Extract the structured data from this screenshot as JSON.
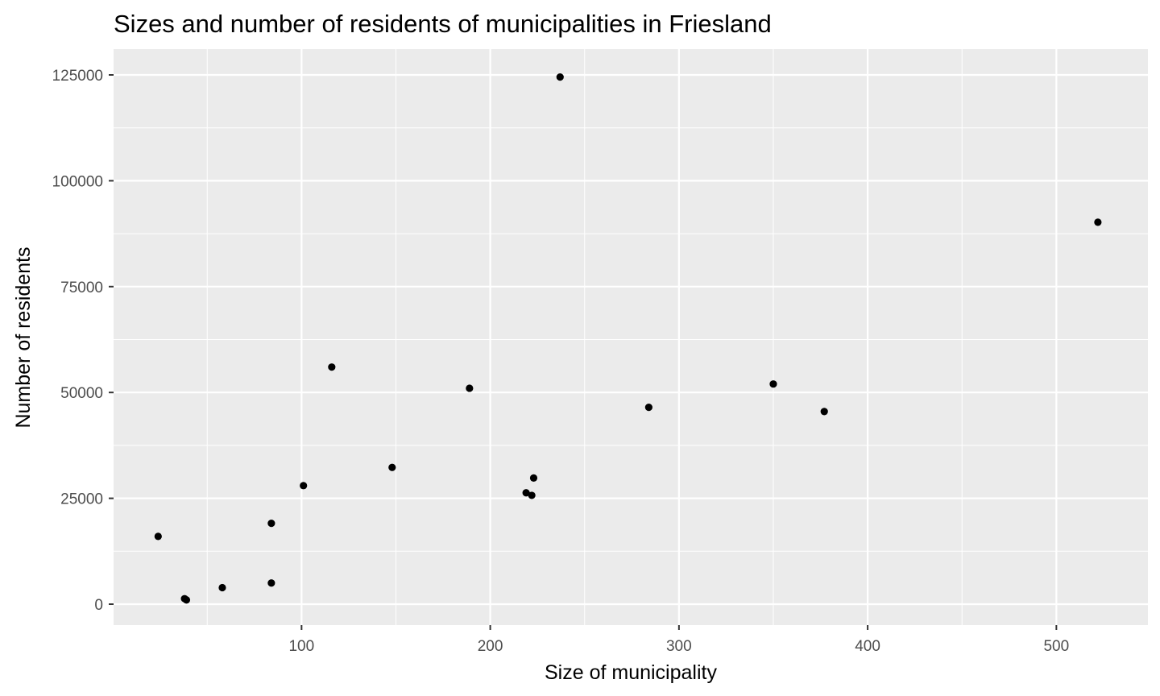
{
  "chart_data": {
    "type": "scatter",
    "title": "Sizes and number of residents of municipalities in Friesland",
    "xlabel": "Size of municipality",
    "ylabel": "Number of residents",
    "xlim": [
      0,
      525
    ],
    "ylim": [
      0,
      125000
    ],
    "x_ticks": [
      "100",
      "200",
      "300",
      "400",
      "500"
    ],
    "y_ticks": [
      "0",
      "25000",
      "50000",
      "75000",
      "100000",
      "125000"
    ],
    "grid": true,
    "legend": "none",
    "colors": {
      "panel": "#ebebeb",
      "grid": "#ffffff",
      "point": "#000000"
    },
    "points": [
      {
        "x": 24,
        "y": 16000
      },
      {
        "x": 38,
        "y": 1300
      },
      {
        "x": 39,
        "y": 1000
      },
      {
        "x": 58,
        "y": 3900
      },
      {
        "x": 84,
        "y": 19100
      },
      {
        "x": 84,
        "y": 5000
      },
      {
        "x": 101,
        "y": 28000
      },
      {
        "x": 116,
        "y": 56000
      },
      {
        "x": 148,
        "y": 32300
      },
      {
        "x": 189,
        "y": 51000
      },
      {
        "x": 219,
        "y": 26300
      },
      {
        "x": 222,
        "y": 25700
      },
      {
        "x": 223,
        "y": 29800
      },
      {
        "x": 237,
        "y": 124500
      },
      {
        "x": 284,
        "y": 46500
      },
      {
        "x": 350,
        "y": 52000
      },
      {
        "x": 377,
        "y": 45500
      },
      {
        "x": 522,
        "y": 90200
      }
    ]
  }
}
